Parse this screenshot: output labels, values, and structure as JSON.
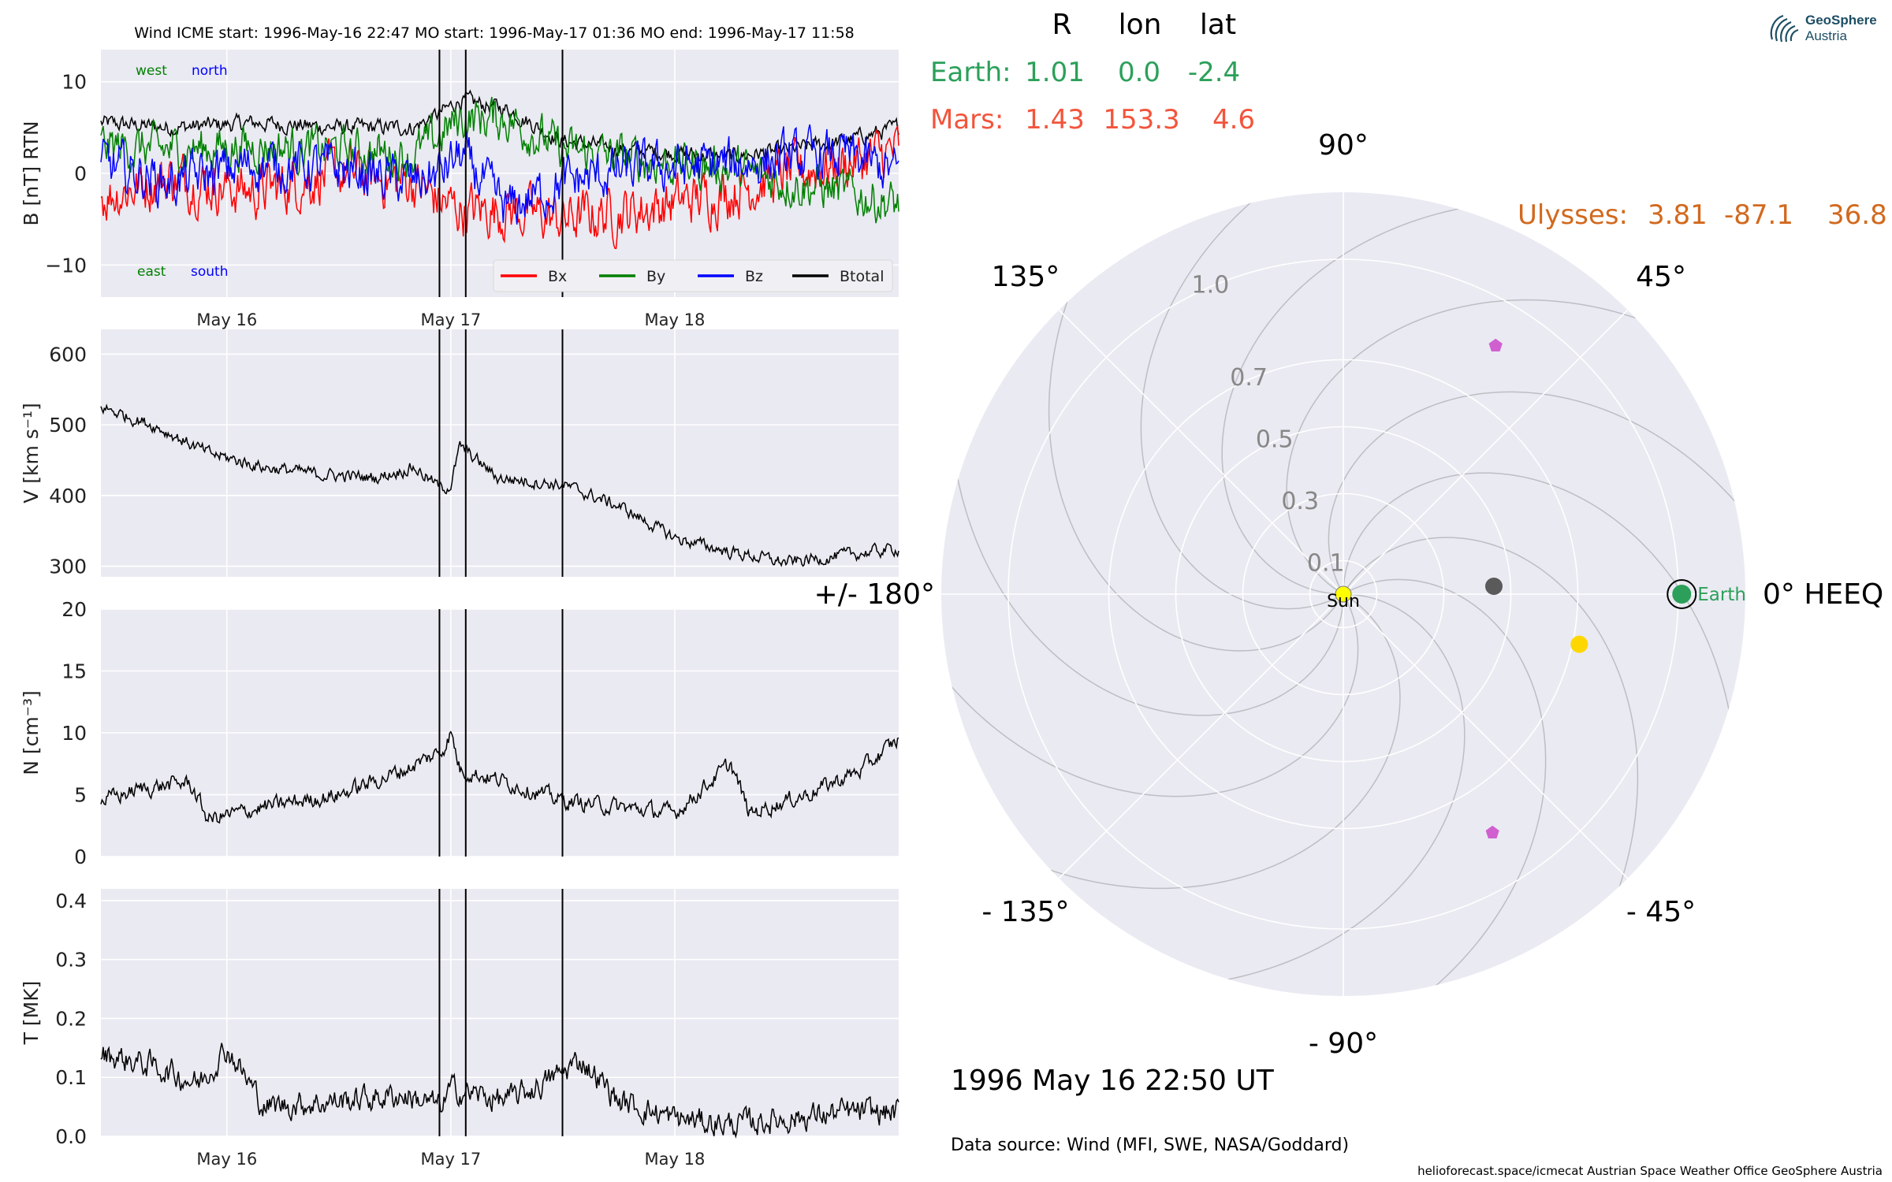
{
  "header": {
    "text": "Wind    ICME start: 1996-May-16 22:47   MO start: 1996-May-17 01:36   MO end: 1996-May-17 11:58"
  },
  "logo": {
    "line1": "GeoSphere",
    "line2": "Austria",
    "icon": "geosphere-swirl-icon"
  },
  "footer": {
    "date_text": "1996 May 16  22:50 UT",
    "source_text": "Data source: Wind (MFI, SWE, NASA/Goddard)",
    "credit_text": "helioforecast.space/icmecat   Austrian Space Weather Office   GeoSphere Austria"
  },
  "positions_table": {
    "headers": [
      "R",
      "lon",
      "lat"
    ],
    "rows": [
      {
        "label": "Earth:",
        "R": "1.01",
        "lon": "0.0",
        "lat": "-2.4",
        "color": "#2ca05a"
      },
      {
        "label": "Mars:",
        "R": "1.43",
        "lon": "153.3",
        "lat": "4.6",
        "color": "#f2553c"
      },
      {
        "label": "Ulysses:",
        "R": "3.81",
        "lon": "-87.1",
        "lat": "36.8",
        "color": "#d2691e"
      }
    ]
  },
  "colors": {
    "Bx": "#ff0000",
    "By": "#008000",
    "Bz": "#0000ff",
    "Btotal": "#000000",
    "panel_bg": "#eaeaf2",
    "grid": "#ffffff",
    "earth": "#2ca05a",
    "sun": "#ffff00",
    "planet_gray": "#5a5a5a",
    "planet_gold": "#ffd700",
    "spacecraft": "#d060d0"
  },
  "chart_data": [
    {
      "type": "line",
      "panel": "B",
      "ylabel": "B [nT] RTN",
      "ylim": [
        -13.5,
        13.5
      ],
      "yticks": [
        -10,
        0,
        10
      ],
      "yticklabels": [
        "−10",
        "0",
        "10"
      ],
      "time_axis_days": {
        "start": "1996-05-15 10:30",
        "end": "1996-05-19 00:00"
      },
      "xticklabels": [
        "May 16",
        "May 17",
        "May 18"
      ],
      "xtick_dates": [
        "1996-05-16 00:00",
        "1996-05-17 00:00",
        "1996-05-18 00:00"
      ],
      "grid": true,
      "annotations": {
        "top_left": [
          "west",
          "north"
        ],
        "bottom_left": [
          "east",
          "south"
        ]
      },
      "legend": {
        "placement": "lower-right",
        "entries": [
          "Bx",
          "By",
          "Bz",
          "Btotal"
        ]
      },
      "event_lines": [
        "1996-05-16 22:47",
        "1996-05-17 01:36",
        "1996-05-17 11:58"
      ],
      "series": [
        {
          "name": "Btotal",
          "x": [
            "1996-05-15 10:30",
            "1996-05-15 18:00",
            "1996-05-16 03:00",
            "1996-05-16 12:00",
            "1996-05-16 20:00",
            "1996-05-16 22:47",
            "1996-05-17 01:00",
            "1996-05-17 06:00",
            "1996-05-17 12:00",
            "1996-05-17 20:00",
            "1996-05-18 06:00",
            "1996-05-18 12:00",
            "1996-05-18 18:00",
            "1996-05-19 00:00"
          ],
          "values": [
            5.5,
            5.0,
            5.5,
            5.0,
            5.0,
            6.5,
            8.0,
            7.0,
            3.5,
            2.5,
            1.8,
            2.5,
            3.5,
            5.0
          ]
        },
        {
          "name": "Bx",
          "x": [
            "1996-05-15 10:30",
            "1996-05-15 18:00",
            "1996-05-16 03:00",
            "1996-05-16 12:00",
            "1996-05-16 20:00",
            "1996-05-16 22:47",
            "1996-05-17 01:00",
            "1996-05-17 06:00",
            "1996-05-17 12:00",
            "1996-05-17 20:00",
            "1996-05-18 06:00",
            "1996-05-18 12:00",
            "1996-05-18 18:00",
            "1996-05-19 00:00"
          ],
          "values": [
            -2.5,
            -0.5,
            -2.0,
            0.0,
            -1.0,
            -3.0,
            -4.0,
            -4.0,
            -5.0,
            -4.0,
            -2.0,
            0.0,
            1.0,
            2.5
          ]
        },
        {
          "name": "By",
          "x": [
            "1996-05-15 10:30",
            "1996-05-15 18:00",
            "1996-05-16 03:00",
            "1996-05-16 12:00",
            "1996-05-16 20:00",
            "1996-05-16 22:47",
            "1996-05-17 01:00",
            "1996-05-17 06:00",
            "1996-05-17 12:00",
            "1996-05-17 20:00",
            "1996-05-18 06:00",
            "1996-05-18 12:00",
            "1996-05-18 18:00",
            "1996-05-19 00:00"
          ],
          "values": [
            3.0,
            2.5,
            3.0,
            2.5,
            2.0,
            4.0,
            6.0,
            6.0,
            2.5,
            1.5,
            0.5,
            -1.0,
            -2.0,
            -3.5
          ]
        },
        {
          "name": "Bz",
          "x": [
            "1996-05-15 10:30",
            "1996-05-15 18:00",
            "1996-05-16 03:00",
            "1996-05-16 12:00",
            "1996-05-16 20:00",
            "1996-05-16 22:47",
            "1996-05-17 01:00",
            "1996-05-17 06:00",
            "1996-05-17 12:00",
            "1996-05-17 20:00",
            "1996-05-18 06:00",
            "1996-05-18 12:00",
            "1996-05-18 18:00",
            "1996-05-19 00:00"
          ],
          "values": [
            1.0,
            -1.0,
            1.0,
            0.5,
            -1.0,
            0.0,
            2.0,
            -4.0,
            -1.0,
            0.5,
            1.0,
            1.5,
            2.0,
            0.0
          ]
        }
      ]
    },
    {
      "type": "line",
      "panel": "V",
      "ylabel": "V [km s⁻¹]",
      "ylim": [
        285,
        635
      ],
      "yticks": [
        300,
        400,
        500,
        600
      ],
      "yticklabels": [
        "300",
        "400",
        "500",
        "600"
      ],
      "time_axis_days": {
        "start": "1996-05-15 10:30",
        "end": "1996-05-19 00:00"
      },
      "grid": true,
      "event_lines": [
        "1996-05-16 22:47",
        "1996-05-17 01:36",
        "1996-05-17 11:58"
      ],
      "series": [
        {
          "name": "V",
          "x": [
            "1996-05-15 10:30",
            "1996-05-15 16:00",
            "1996-05-15 22:00",
            "1996-05-16 04:00",
            "1996-05-16 10:00",
            "1996-05-16 16:00",
            "1996-05-16 20:00",
            "1996-05-16 23:00",
            "1996-05-17 00:00",
            "1996-05-17 01:00",
            "1996-05-17 05:00",
            "1996-05-17 12:00",
            "1996-05-17 18:00",
            "1996-05-18 00:00",
            "1996-05-18 06:00",
            "1996-05-18 12:00",
            "1996-05-18 18:00",
            "1996-05-19 00:00"
          ],
          "values": [
            525,
            500,
            460,
            440,
            430,
            425,
            440,
            410,
            415,
            470,
            425,
            415,
            385,
            340,
            320,
            305,
            315,
            325
          ]
        }
      ]
    },
    {
      "type": "line",
      "panel": "N",
      "ylabel": "N [cm⁻³]",
      "ylim": [
        0,
        20
      ],
      "yticks": [
        0,
        5,
        10,
        15,
        20
      ],
      "yticklabels": [
        "0",
        "5",
        "10",
        "15",
        "20"
      ],
      "time_axis_days": {
        "start": "1996-05-15 10:30",
        "end": "1996-05-19 00:00"
      },
      "grid": true,
      "event_lines": [
        "1996-05-16 22:47",
        "1996-05-17 01:36",
        "1996-05-17 11:58"
      ],
      "series": [
        {
          "name": "N",
          "x": [
            "1996-05-15 10:30",
            "1996-05-15 15:00",
            "1996-05-15 20:00",
            "1996-05-15 22:00",
            "1996-05-16 04:00",
            "1996-05-16 12:00",
            "1996-05-16 19:00",
            "1996-05-16 23:00",
            "1996-05-17 00:00",
            "1996-05-17 01:00",
            "1996-05-17 06:00",
            "1996-05-17 12:00",
            "1996-05-17 18:00",
            "1996-05-18 00:00",
            "1996-05-18 06:00",
            "1996-05-18 08:00",
            "1996-05-18 14:00",
            "1996-05-18 20:00",
            "1996-05-19 00:00"
          ],
          "values": [
            4.5,
            5.5,
            6.0,
            3.0,
            4.0,
            5.0,
            7.0,
            8.5,
            10.0,
            7.0,
            6.0,
            4.5,
            4.0,
            3.5,
            7.5,
            3.5,
            5.0,
            7.0,
            9.5
          ]
        }
      ]
    },
    {
      "type": "line",
      "panel": "T",
      "ylabel": "T [MK]",
      "ylim": [
        0,
        0.42
      ],
      "yticks": [
        0.0,
        0.1,
        0.2,
        0.3,
        0.4
      ],
      "yticklabels": [
        "0.0",
        "0.1",
        "0.2",
        "0.3",
        "0.4"
      ],
      "time_axis_days": {
        "start": "1996-05-15 10:30",
        "end": "1996-05-19 00:00"
      },
      "xticklabels": [
        "May 16",
        "May 17",
        "May 18"
      ],
      "xtick_dates": [
        "1996-05-16 00:00",
        "1996-05-17 00:00",
        "1996-05-18 00:00"
      ],
      "grid": true,
      "event_lines": [
        "1996-05-16 22:47",
        "1996-05-17 01:36",
        "1996-05-17 11:58"
      ],
      "series": [
        {
          "name": "T",
          "x": [
            "1996-05-15 10:30",
            "1996-05-15 16:00",
            "1996-05-15 21:00",
            "1996-05-16 00:00",
            "1996-05-16 04:00",
            "1996-05-16 12:00",
            "1996-05-16 19:00",
            "1996-05-16 23:00",
            "1996-05-17 00:00",
            "1996-05-17 06:00",
            "1996-05-17 10:00",
            "1996-05-17 14:00",
            "1996-05-17 18:00",
            "1996-05-18 00:00",
            "1996-05-18 06:00",
            "1996-05-18 12:00",
            "1996-05-18 18:00",
            "1996-05-19 00:00"
          ],
          "values": [
            0.14,
            0.12,
            0.09,
            0.15,
            0.05,
            0.06,
            0.07,
            0.05,
            0.08,
            0.06,
            0.09,
            0.13,
            0.06,
            0.03,
            0.02,
            0.03,
            0.04,
            0.04
          ]
        }
      ]
    },
    {
      "type": "scatter",
      "panel": "polar",
      "coordinate_system": "polar",
      "angle_labels": [
        {
          "deg": 90,
          "text": "90°"
        },
        {
          "deg": 135,
          "text": "135°"
        },
        {
          "deg": 45,
          "text": "45°"
        },
        {
          "deg": 180,
          "text": "+/- 180°"
        },
        {
          "deg": 0,
          "text": "0° HEEQ"
        },
        {
          "deg": -135,
          "text": "- 135°"
        },
        {
          "deg": -45,
          "text": "- 45°"
        },
        {
          "deg": -90,
          "text": "- 90°"
        }
      ],
      "radial_ticks": [
        0.1,
        0.3,
        0.5,
        0.7,
        1.0
      ],
      "radial_ticklabels": [
        "0.1",
        "0.3",
        "0.5",
        "0.7",
        "1.0"
      ],
      "rmax": 1.2,
      "grid": true,
      "objects": [
        {
          "name": "Sun",
          "r": 0.0,
          "lon": 0,
          "color": "#ffff00",
          "marker": "circle",
          "label": "Sun"
        },
        {
          "name": "Earth",
          "r": 1.01,
          "lon": 0.0,
          "color": "#2ca05a",
          "marker": "circle-ringed",
          "label": "Earth"
        },
        {
          "name": "gray-body",
          "r": 0.45,
          "lon": 3.0,
          "color": "#5a5a5a",
          "marker": "circle",
          "label": ""
        },
        {
          "name": "gold-body",
          "r": 0.72,
          "lon": -12.0,
          "color": "#ffd700",
          "marker": "circle",
          "label": ""
        },
        {
          "name": "spacecraft-upper",
          "r": 0.87,
          "lon": 58.5,
          "color": "#d060d0",
          "marker": "pentagon",
          "label": ""
        },
        {
          "name": "spacecraft-lower",
          "r": 0.84,
          "lon": -58.0,
          "color": "#d060d0",
          "marker": "pentagon",
          "label": ""
        }
      ]
    }
  ]
}
